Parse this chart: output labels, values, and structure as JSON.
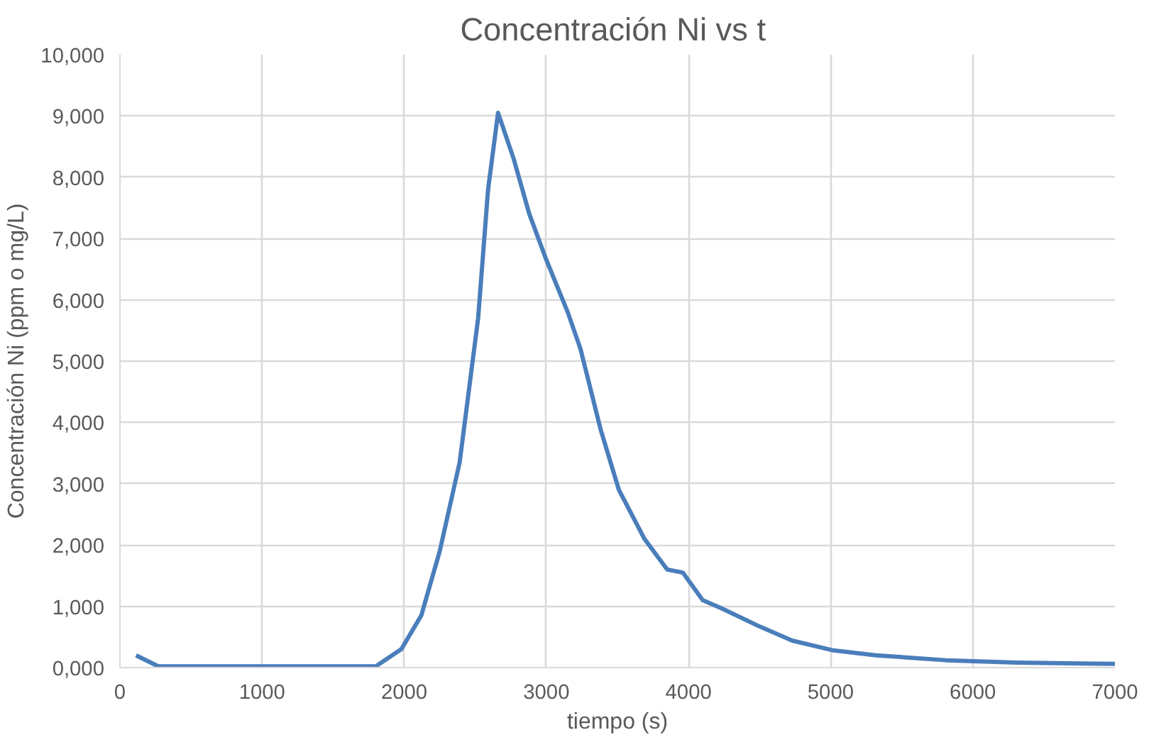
{
  "chart_data": {
    "type": "line",
    "title": "Concentración  Ni vs t",
    "xlabel": "tiempo (s)",
    "ylabel": "Concentración Ni (ppm o mg/L)",
    "series": [
      {
        "color": "#4a7ebb",
        "x": [
          113,
          270,
          800,
          1300,
          1800,
          1980,
          2120,
          2250,
          2390,
          2520,
          2590,
          2660,
          2770,
          2880,
          3000,
          3150,
          3240,
          3380,
          3510,
          3690,
          3850,
          3960,
          4100,
          4230,
          4500,
          4730,
          5020,
          5320,
          5810,
          6310,
          7000
        ],
        "values": [
          200,
          20,
          20,
          20,
          20,
          300,
          850,
          1900,
          3350,
          5700,
          7800,
          9050,
          8300,
          7400,
          6650,
          5800,
          5200,
          3900,
          2900,
          2100,
          1600,
          1550,
          1100,
          970,
          670,
          440,
          280,
          200,
          120,
          80,
          60
        ]
      }
    ],
    "xlim": [
      0,
      7000
    ],
    "xticks": [
      0,
      1000,
      2000,
      3000,
      4000,
      5000,
      6000,
      7000
    ],
    "ylim": [
      0,
      10000
    ],
    "yticks": [
      {
        "value": 0,
        "label": "0,000"
      },
      {
        "value": 1000,
        "label": "1,000"
      },
      {
        "value": 2000,
        "label": "2,000"
      },
      {
        "value": 3000,
        "label": "3,000"
      },
      {
        "value": 4000,
        "label": "4,000"
      },
      {
        "value": 5000,
        "label": "5,000"
      },
      {
        "value": 6000,
        "label": "6,000"
      },
      {
        "value": 7000,
        "label": "7,000"
      },
      {
        "value": 8000,
        "label": "8,000"
      },
      {
        "value": 9000,
        "label": "9,000"
      },
      {
        "value": 10000,
        "label": "10,000"
      }
    ],
    "grid": true,
    "marker": "none",
    "line_style": "solid"
  }
}
